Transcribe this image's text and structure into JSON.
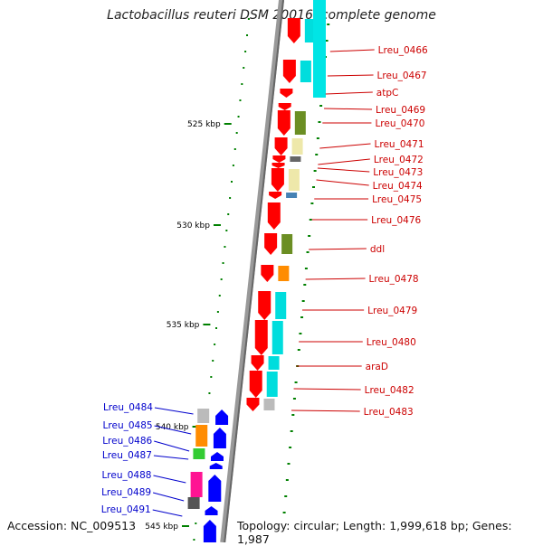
{
  "title": "Lactobacillus reuteri DSM 20016, complete genome",
  "footer": {
    "accession": "Accession: NC_009513",
    "topology": "Topology: circular; Length: 1,999,618 bp; Genes: 1,987"
  },
  "colors": {
    "forward_gene": "#ff0000",
    "reverse_gene": "#0000ff",
    "forward_label": "#cc0000",
    "reverse_label": "#0000cc",
    "backbone": "#808080",
    "tick": "#008000"
  },
  "ruler": {
    "unit": "kbp",
    "labels": [
      "525 kbp",
      "530 kbp",
      "535 kbp",
      "540 kbp",
      "545 kbp"
    ]
  },
  "genes": [
    {
      "name": "Lreu_0466",
      "strand": "+",
      "cog": "cyan"
    },
    {
      "name": "Lreu_0467",
      "strand": "+",
      "cog": "cyan"
    },
    {
      "name": "atpC",
      "strand": "+",
      "cog": "none"
    },
    {
      "name": "Lreu_0469",
      "strand": "+",
      "cog": "none"
    },
    {
      "name": "Lreu_0470",
      "strand": "+",
      "cog": "olive"
    },
    {
      "name": "Lreu_0471",
      "strand": "+",
      "cog": "khaki"
    },
    {
      "name": "Lreu_0472",
      "strand": "+",
      "cog": "gray"
    },
    {
      "name": "Lreu_0473",
      "strand": "+",
      "cog": "none"
    },
    {
      "name": "Lreu_0474",
      "strand": "+",
      "cog": "khaki"
    },
    {
      "name": "Lreu_0475",
      "strand": "+",
      "cog": "steelblue"
    },
    {
      "name": "Lreu_0476",
      "strand": "+",
      "cog": "none"
    },
    {
      "name": "ddl",
      "strand": "+",
      "cog": "olive"
    },
    {
      "name": "Lreu_0478",
      "strand": "+",
      "cog": "orange"
    },
    {
      "name": "Lreu_0479",
      "strand": "+",
      "cog": "cyan"
    },
    {
      "name": "Lreu_0480",
      "strand": "+",
      "cog": "cyan"
    },
    {
      "name": "araD",
      "strand": "+",
      "cog": "cyan"
    },
    {
      "name": "Lreu_0482",
      "strand": "+",
      "cog": "cyan"
    },
    {
      "name": "Lreu_0483",
      "strand": "+",
      "cog": "lightgray"
    },
    {
      "name": "Lreu_0484",
      "strand": "-",
      "cog": "lightgray"
    },
    {
      "name": "Lreu_0485",
      "strand": "-",
      "cog": "orange"
    },
    {
      "name": "Lreu_0486",
      "strand": "-",
      "cog": "green"
    },
    {
      "name": "Lreu_0487",
      "strand": "-",
      "cog": "none"
    },
    {
      "name": "Lreu_0488",
      "strand": "-",
      "cog": "magenta"
    },
    {
      "name": "Lreu_0489",
      "strand": "-",
      "cog": "darkgray"
    },
    {
      "name": "Lreu_0491",
      "strand": "-",
      "cog": "none"
    }
  ]
}
